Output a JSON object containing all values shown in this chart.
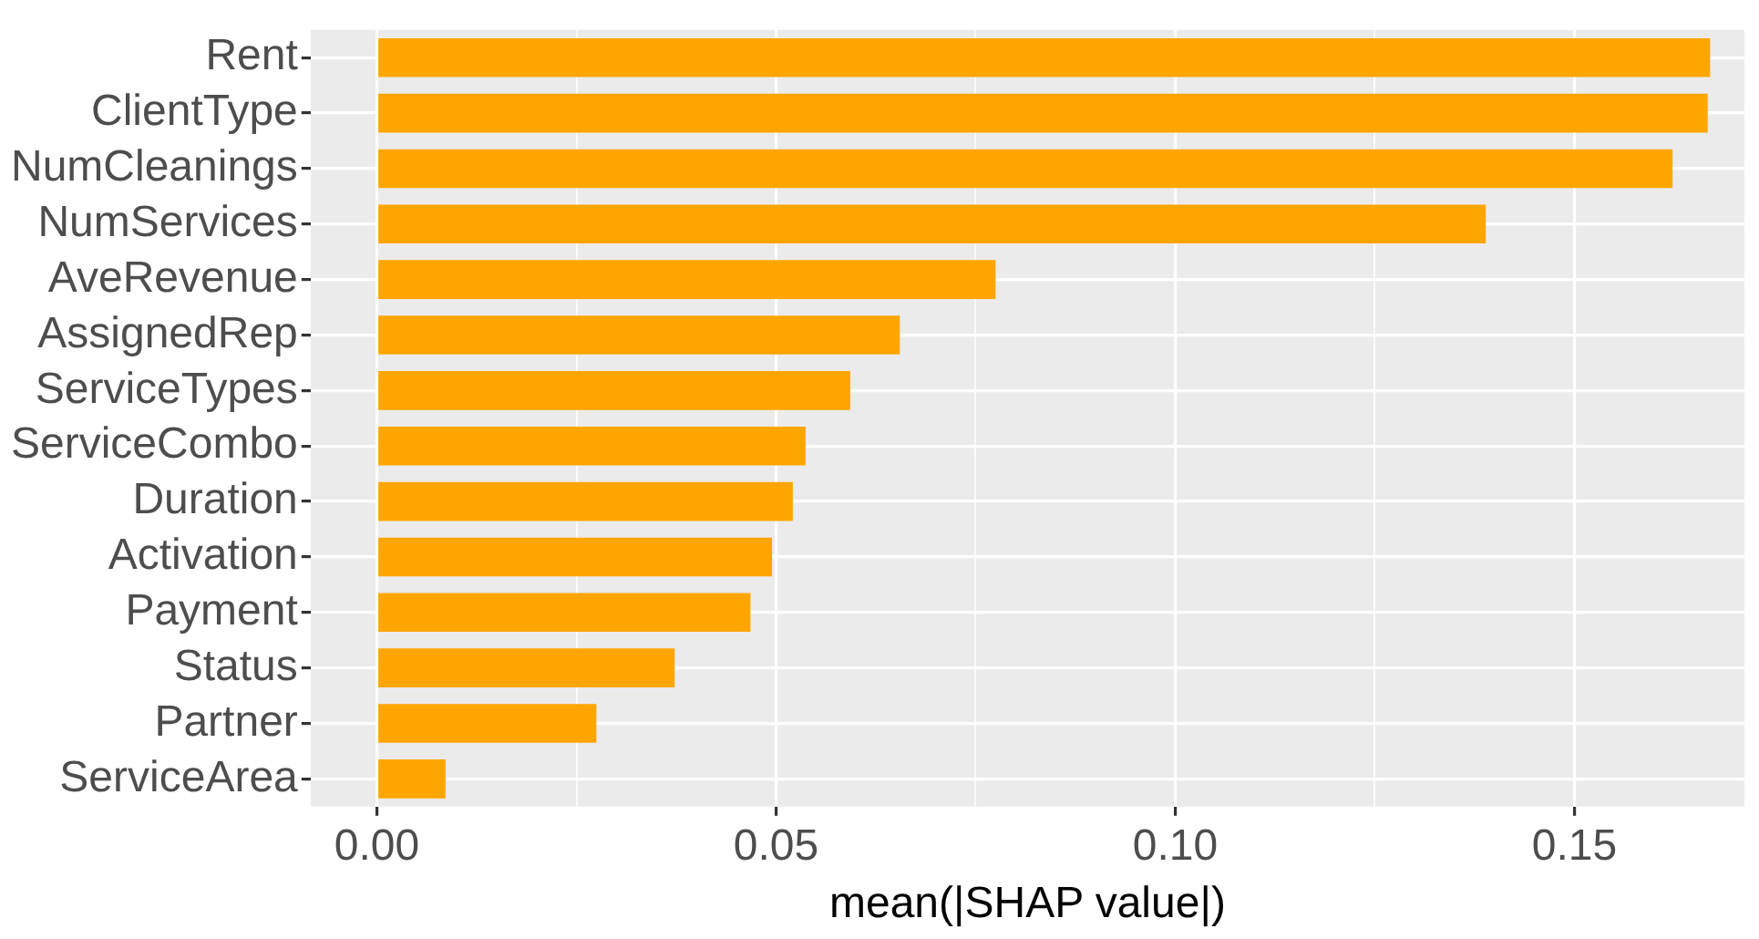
{
  "chart_data": {
    "type": "bar",
    "orientation": "horizontal",
    "xlabel": "mean(|SHAP value|)",
    "categories": [
      "Rent",
      "ClientType",
      "NumCleanings",
      "NumServices",
      "AveRevenue",
      "AssignedRep",
      "ServiceTypes",
      "ServiceCombo",
      "Duration",
      "Activation",
      "Payment",
      "Status",
      "Partner",
      "ServiceArea"
    ],
    "values": [
      0.167,
      0.1667,
      0.1623,
      0.1389,
      0.0775,
      0.0655,
      0.0593,
      0.0537,
      0.0521,
      0.0495,
      0.0468,
      0.0373,
      0.0275,
      0.0086
    ],
    "color": "#ffa500",
    "xlim": [
      -0.0083,
      0.1713
    ],
    "xticks": [
      {
        "value": 0,
        "label": "0.00"
      },
      {
        "value": 0.025,
        "label": null
      },
      {
        "value": 0.05,
        "label": "0.05"
      },
      {
        "value": 0.075,
        "label": null
      },
      {
        "value": 0.1,
        "label": "0.10"
      },
      {
        "value": 0.125,
        "label": null
      },
      {
        "value": 0.15,
        "label": "0.15"
      }
    ],
    "grid": true,
    "legend": false
  }
}
